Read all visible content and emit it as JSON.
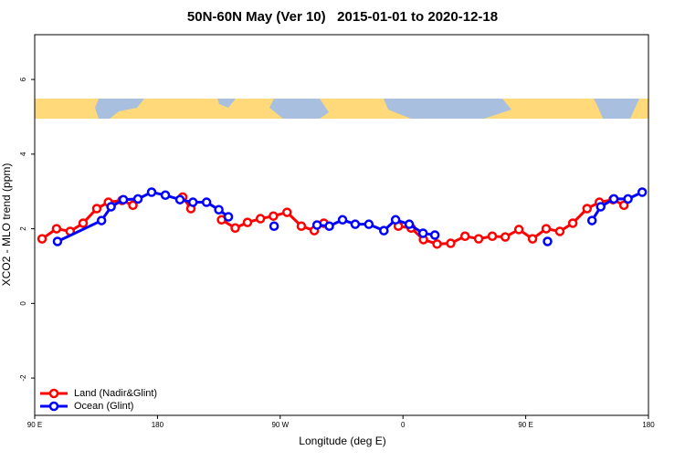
{
  "chart_data": {
    "type": "line",
    "title": "50N-60N May (Ver 10)   2015-01-01 to 2020-12-18",
    "x_label": "Longitude (deg E)",
    "y_label": "XCO2 - MLO trend (ppm)",
    "xlim": [
      90,
      540
    ],
    "xticks": [
      {
        "value": 90,
        "label": "90 E"
      },
      {
        "value": 180,
        "label": "180"
      },
      {
        "value": 270,
        "label": "90 W"
      },
      {
        "value": 360,
        "label": "0"
      },
      {
        "value": 450,
        "label": "90 E"
      },
      {
        "value": 540,
        "label": "180"
      }
    ],
    "ylim": [
      -3,
      7.2
    ],
    "yticks": [
      -2,
      0,
      2,
      4,
      6
    ],
    "legend": "bottomleft",
    "series": [
      {
        "name": "Land (Nadir&Glint)",
        "color": "#ff0000",
        "x": [
          95.4,
          106,
          116,
          125.5,
          135.5,
          144,
          154,
          162,
          190,
          198.5,
          204.5,
          215,
          227,
          237,
          246,
          255.5,
          265,
          275,
          285.5,
          295,
          302,
          330,
          356.6,
          366,
          375,
          385,
          395,
          405.5,
          415.5,
          425.5,
          435,
          445,
          455,
          465,
          475,
          484.5,
          495,
          504,
          514,
          522
        ],
        "values": [
          1.73,
          2.0,
          1.93,
          2.15,
          2.54,
          2.71,
          2.76,
          2.63,
          null,
          2.85,
          2.54,
          null,
          2.24,
          2.02,
          2.17,
          2.27,
          2.34,
          2.44,
          2.07,
          1.95,
          2.15,
          null,
          2.07,
          2.02,
          1.71,
          1.59,
          1.61,
          1.8,
          1.73,
          1.8,
          1.78,
          1.98,
          1.73,
          2.0,
          1.93,
          2.15,
          2.54,
          2.71,
          2.78,
          2.63
        ]
      },
      {
        "name": "Ocean (Glint)",
        "color": "#0000ff",
        "x": [
          106.7,
          139,
          146,
          155,
          165.7,
          175.7,
          185.8,
          196.5,
          206,
          216,
          225,
          232,
          250,
          265.5,
          280,
          297,
          306,
          315.7,
          325,
          335,
          346,
          354.6,
          364.6,
          374.7,
          383.4,
          420,
          466,
          480,
          498.6,
          505,
          514.6,
          525,
          535.4
        ],
        "values": [
          1.66,
          2.22,
          2.59,
          2.78,
          2.8,
          2.98,
          2.9,
          2.78,
          2.71,
          2.71,
          2.51,
          2.32,
          null,
          2.07,
          null,
          2.1,
          2.07,
          2.24,
          2.12,
          2.12,
          1.95,
          2.24,
          2.12,
          1.88,
          1.83,
          null,
          1.66,
          null,
          2.22,
          2.59,
          2.8,
          2.8,
          2.98
        ]
      }
    ]
  }
}
